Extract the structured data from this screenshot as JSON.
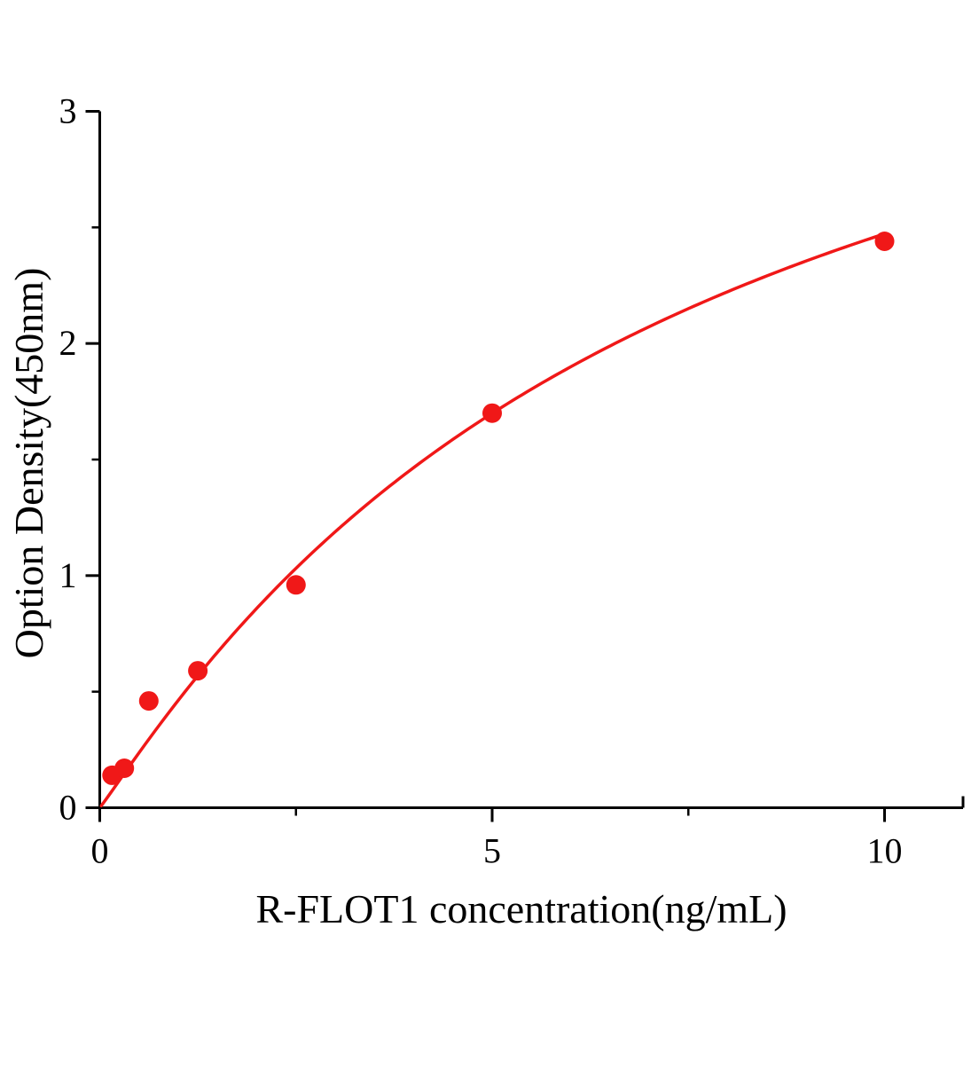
{
  "figure": {
    "background": "#ffffff"
  },
  "chart_data": {
    "type": "scatter",
    "title": "",
    "xlabel": "R-FLOT1 concentration(ng/mL)",
    "ylabel": "Option Density(450nm)",
    "x_range": [
      0,
      11
    ],
    "y_range": [
      0,
      3
    ],
    "x_major_ticks": [
      0,
      5,
      10
    ],
    "x_minor_ticks": [
      2.5,
      7.5
    ],
    "y_major_ticks": [
      0,
      1,
      2,
      3
    ],
    "y_minor_ticks": [
      0.5,
      1.5,
      2.5
    ],
    "grid": false,
    "legend": false,
    "points": [
      {
        "x": 0.156,
        "y": 0.14
      },
      {
        "x": 0.3125,
        "y": 0.17
      },
      {
        "x": 0.625,
        "y": 0.46
      },
      {
        "x": 1.25,
        "y": 0.59
      },
      {
        "x": 2.5,
        "y": 0.96
      },
      {
        "x": 5,
        "y": 1.7
      },
      {
        "x": 10,
        "y": 2.44
      }
    ],
    "fit_curve": {
      "model": "4PL",
      "params": {
        "a": 0,
        "b": 1.05,
        "c": 7.5,
        "d": 4.3
      },
      "x_from": 0.02,
      "x_to": 10
    },
    "marker": {
      "shape": "circle",
      "radius_px": 11
    },
    "colors": {
      "series": "#f01818",
      "axis": "#000000",
      "background": "#ffffff"
    }
  }
}
